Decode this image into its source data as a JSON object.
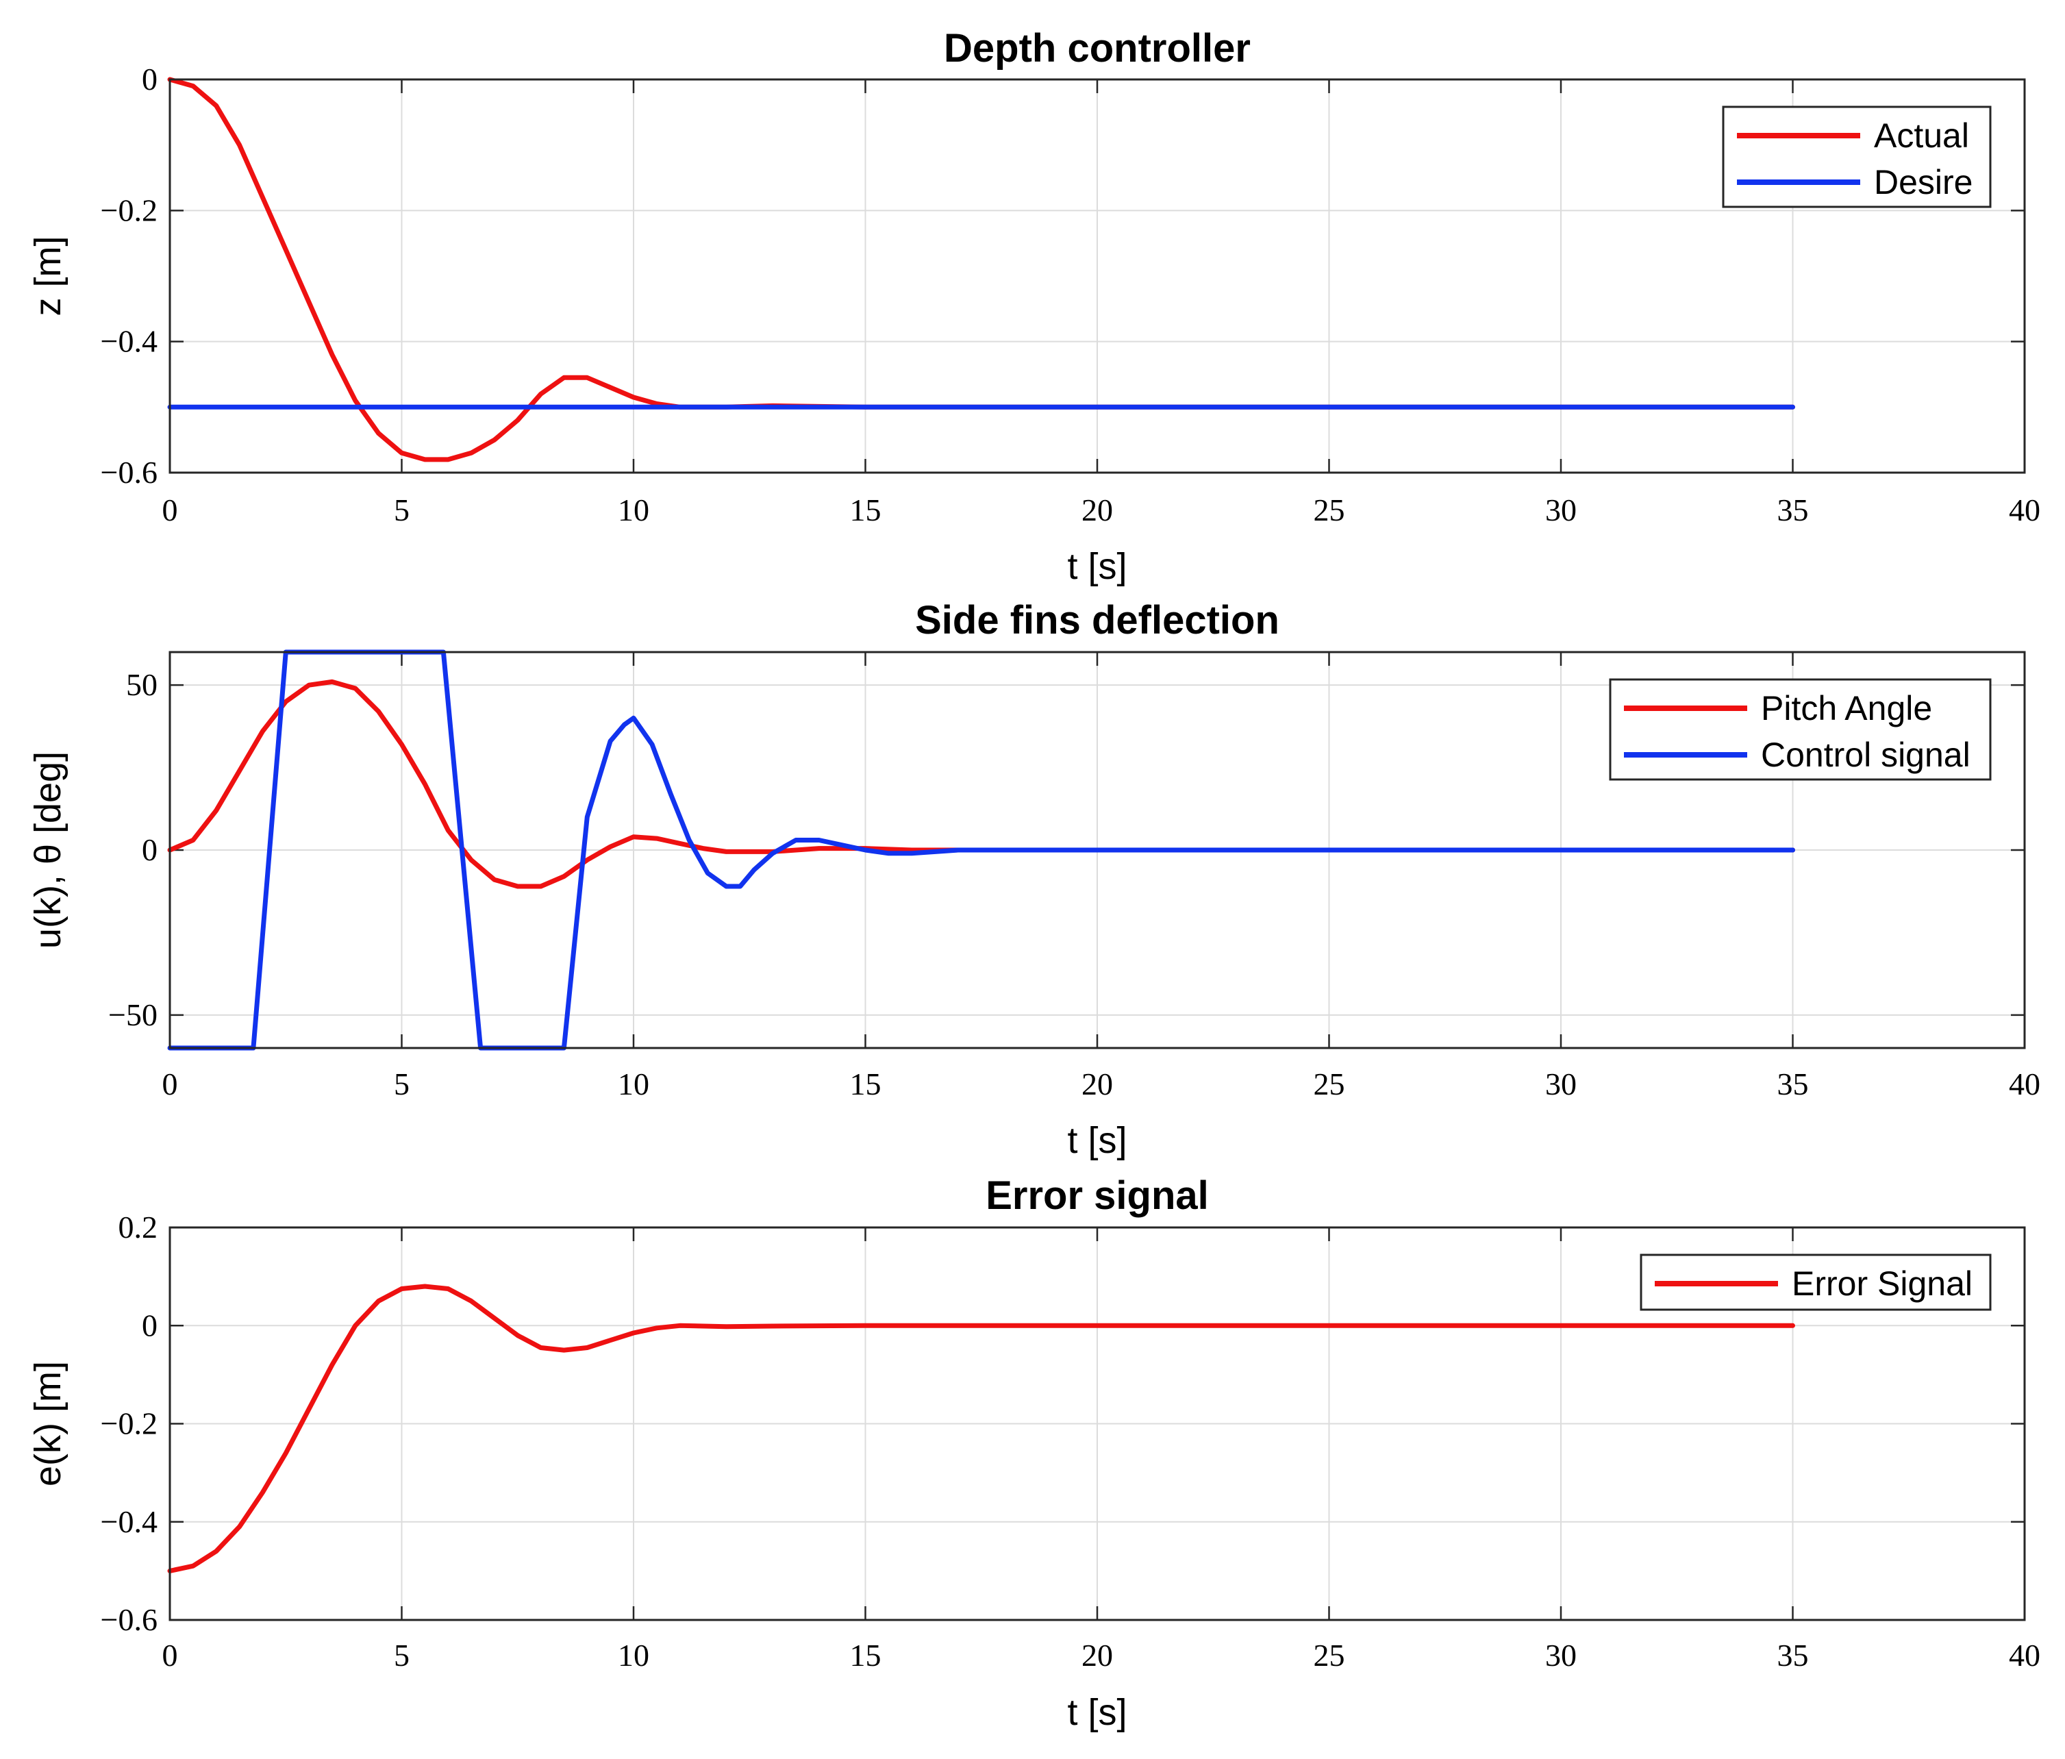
{
  "chart_data": [
    {
      "type": "line",
      "title": "Depth controller",
      "xlabel": "t [s]",
      "ylabel": "z [m]",
      "xlim": [
        0,
        40
      ],
      "ylim": [
        -0.6,
        0
      ],
      "xticks": [
        0,
        5,
        10,
        15,
        20,
        25,
        30,
        35,
        40
      ],
      "yticks": [
        0,
        -0.2,
        -0.4,
        -0.6
      ],
      "xtick_labels": [
        "0",
        "5",
        "10",
        "15",
        "20",
        "25",
        "30",
        "35",
        "40"
      ],
      "ytick_labels": [
        "0",
        "−0.2",
        "−0.4",
        "−0.6"
      ],
      "grid": true,
      "legend_position": "top-right",
      "series": [
        {
          "name": "Actual",
          "color": "#ee1111",
          "x": [
            0,
            0.5,
            1,
            1.5,
            2,
            2.5,
            3,
            3.5,
            4,
            4.5,
            5,
            5.5,
            6,
            6.5,
            7,
            7.5,
            8,
            8.5,
            9,
            9.5,
            10,
            10.5,
            11,
            11.5,
            12,
            13,
            14,
            15,
            17,
            20,
            25,
            30,
            35
          ],
          "y": [
            0,
            -0.01,
            -0.04,
            -0.1,
            -0.18,
            -0.26,
            -0.34,
            -0.42,
            -0.49,
            -0.54,
            -0.57,
            -0.58,
            -0.58,
            -0.57,
            -0.55,
            -0.52,
            -0.48,
            -0.455,
            -0.455,
            -0.47,
            -0.485,
            -0.495,
            -0.5,
            -0.5,
            -0.5,
            -0.498,
            -0.499,
            -0.5,
            -0.5,
            -0.5,
            -0.5,
            -0.5,
            -0.5
          ]
        },
        {
          "name": "Desire",
          "color": "#1133ee",
          "x": [
            0,
            35
          ],
          "y": [
            -0.5,
            -0.5
          ]
        }
      ]
    },
    {
      "type": "line",
      "title": "Side fins deflection",
      "xlabel": "t [s]",
      "ylabel": "u(k), θ [deg]",
      "xlim": [
        0,
        40
      ],
      "ylim": [
        -60,
        60
      ],
      "xticks": [
        0,
        5,
        10,
        15,
        20,
        25,
        30,
        35,
        40
      ],
      "yticks": [
        50,
        0,
        -50
      ],
      "xtick_labels": [
        "0",
        "5",
        "10",
        "15",
        "20",
        "25",
        "30",
        "35",
        "40"
      ],
      "ytick_labels": [
        "50",
        "0",
        "−50"
      ],
      "grid": true,
      "legend_position": "top-right",
      "series": [
        {
          "name": "Pitch Angle",
          "color": "#ee1111",
          "x": [
            0,
            0.5,
            1,
            1.5,
            2,
            2.5,
            3,
            3.5,
            4,
            4.5,
            5,
            5.5,
            6,
            6.5,
            7,
            7.5,
            8,
            8.5,
            9,
            9.5,
            10,
            10.5,
            11,
            11.5,
            12,
            13,
            14,
            15,
            16,
            17,
            20,
            25,
            30,
            35
          ],
          "y": [
            0,
            3,
            12,
            24,
            36,
            45,
            50,
            51,
            49,
            42,
            32,
            20,
            6,
            -3,
            -9,
            -11,
            -11,
            -8,
            -3,
            1,
            4,
            3.5,
            2,
            0.5,
            -0.5,
            -0.5,
            0.5,
            0.5,
            0,
            0,
            0,
            0,
            0,
            0
          ]
        },
        {
          "name": "Control signal",
          "color": "#1133ee",
          "x": [
            0,
            1.8,
            2.5,
            5.9,
            6.7,
            8.5,
            9,
            9.5,
            9.8,
            10,
            10.4,
            10.8,
            11.2,
            11.6,
            12,
            12.3,
            12.6,
            13,
            13.5,
            14,
            14.5,
            15,
            15.5,
            16,
            17,
            20,
            25,
            30,
            35
          ],
          "y": [
            -60,
            -60,
            60,
            60,
            -60,
            -60,
            10,
            33,
            38,
            40,
            32,
            17,
            3,
            -7,
            -11,
            -11,
            -6,
            -1,
            3,
            3,
            1.5,
            0,
            -1,
            -1,
            0,
            0,
            0,
            0,
            0
          ]
        }
      ]
    },
    {
      "type": "line",
      "title": "Error signal",
      "xlabel": "t [s]",
      "ylabel": "e(k) [m]",
      "xlim": [
        0,
        40
      ],
      "ylim": [
        -0.6,
        0.2
      ],
      "xticks": [
        0,
        5,
        10,
        15,
        20,
        25,
        30,
        35,
        40
      ],
      "yticks": [
        0.2,
        0,
        -0.2,
        -0.4,
        -0.6
      ],
      "xtick_labels": [
        "0",
        "5",
        "10",
        "15",
        "20",
        "25",
        "30",
        "35",
        "40"
      ],
      "ytick_labels": [
        "0.2",
        "0",
        "−0.2",
        "−0.4",
        "−0.6"
      ],
      "grid": true,
      "legend_position": "top-right",
      "series": [
        {
          "name": "Error Signal",
          "color": "#ee1111",
          "x": [
            0,
            0.5,
            1,
            1.5,
            2,
            2.5,
            3,
            3.5,
            4,
            4.5,
            5,
            5.5,
            6,
            6.5,
            7,
            7.5,
            8,
            8.5,
            9,
            9.5,
            10,
            10.5,
            11,
            12,
            13,
            15,
            17,
            20,
            25,
            30,
            35
          ],
          "y": [
            -0.5,
            -0.49,
            -0.46,
            -0.41,
            -0.34,
            -0.26,
            -0.17,
            -0.08,
            0,
            0.05,
            0.075,
            0.08,
            0.075,
            0.05,
            0.015,
            -0.02,
            -0.045,
            -0.05,
            -0.045,
            -0.03,
            -0.015,
            -0.005,
            0,
            -0.002,
            -0.001,
            0,
            0,
            0,
            0,
            0,
            0
          ]
        }
      ]
    }
  ]
}
